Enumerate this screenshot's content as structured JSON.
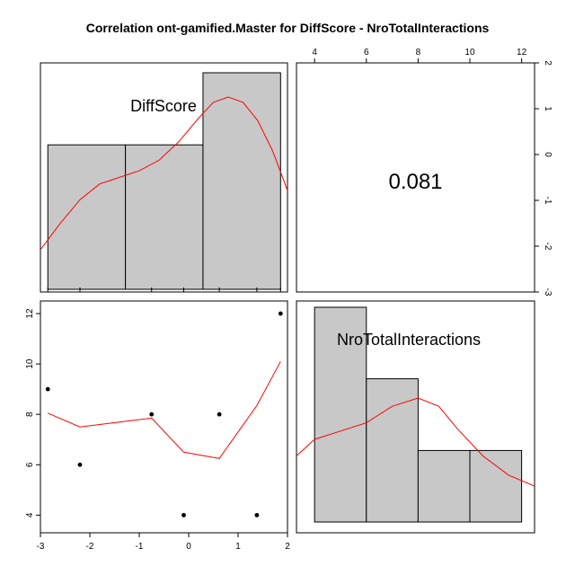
{
  "chart_data": {
    "type": "pairs",
    "title": "Correlation ont-gamified.Master for DiffScore - NroTotalInteractions",
    "variables": [
      "DiffScore",
      "NroTotalInteractions"
    ],
    "correlation": "0.081",
    "axes": {
      "diffscore_ticks": [
        -3,
        -2,
        -1,
        0,
        1,
        2
      ],
      "nro_ticks": [
        4,
        6,
        8,
        10,
        12
      ],
      "diffscore_range": [
        -3,
        2
      ],
      "nro_range": [
        3.3,
        12.5
      ]
    },
    "histogram_diffscore": {
      "bin_edges": [
        -2.85,
        -1.28,
        0.29,
        1.86
      ],
      "relative_heights": [
        0.667,
        0.667,
        1.0
      ],
      "density_curve_color": "#ff0000"
    },
    "histogram_nro": {
      "bin_edges": [
        4,
        6,
        8,
        10,
        12
      ],
      "relative_heights": [
        1.0,
        0.667,
        0.333,
        0.333
      ],
      "density_curve_color": "#ff0000"
    },
    "scatter": {
      "points": [
        {
          "x": -2.85,
          "y": 9
        },
        {
          "x": -2.2,
          "y": 6
        },
        {
          "x": -0.75,
          "y": 8
        },
        {
          "x": -0.1,
          "y": 4
        },
        {
          "x": 0.62,
          "y": 8
        },
        {
          "x": 1.38,
          "y": 4
        },
        {
          "x": 1.86,
          "y": 12
        }
      ],
      "smooth_line": [
        {
          "x": -2.85,
          "y": 8.05
        },
        {
          "x": -2.2,
          "y": 7.5
        },
        {
          "x": -0.75,
          "y": 7.85
        },
        {
          "x": -0.1,
          "y": 6.5
        },
        {
          "x": 0.62,
          "y": 6.25
        },
        {
          "x": 1.38,
          "y": 8.35
        },
        {
          "x": 1.86,
          "y": 10.1
        }
      ],
      "smooth_color": "#ff0000"
    },
    "bar_fill": "#c8c8c8"
  }
}
